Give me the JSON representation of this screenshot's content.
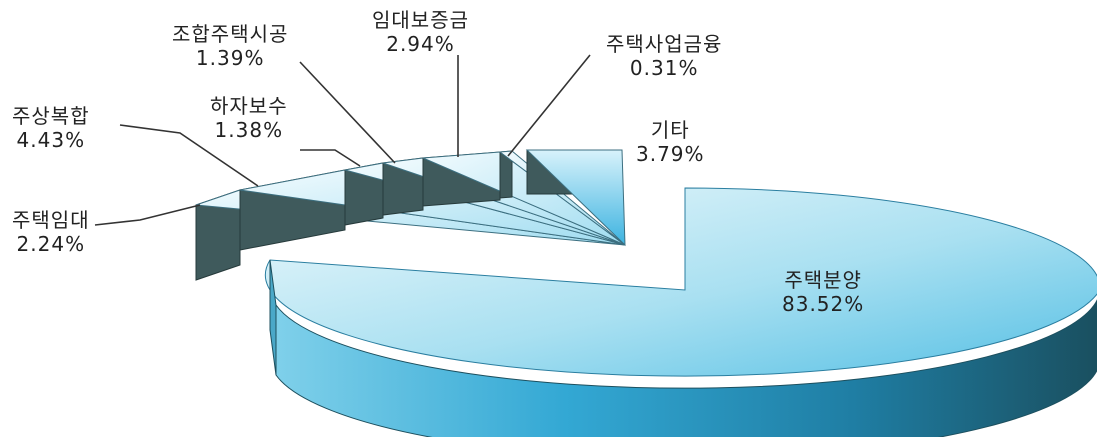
{
  "chart_data": {
    "type": "pie",
    "title": "",
    "style": "3d-exploded",
    "categories": [
      "주택분양",
      "주택임대",
      "주상복합",
      "하자보수",
      "조합주택시공",
      "임대보증금",
      "주택사업금융",
      "기타"
    ],
    "values": [
      83.52,
      2.24,
      4.43,
      1.38,
      1.39,
      2.94,
      0.31,
      3.79
    ],
    "value_labels": [
      "83.52%",
      "2.24%",
      "4.43%",
      "1.38%",
      "1.39%",
      "2.94%",
      "0.31%",
      "3.79%"
    ],
    "colors": {
      "top_light": "#eaf8fc",
      "top_dark": "#56c2e6",
      "side_light": "#4fb6d8",
      "side_dark": "#1b5c72",
      "slice_side": "#3f5a5c",
      "leader_line": "#333333"
    }
  }
}
